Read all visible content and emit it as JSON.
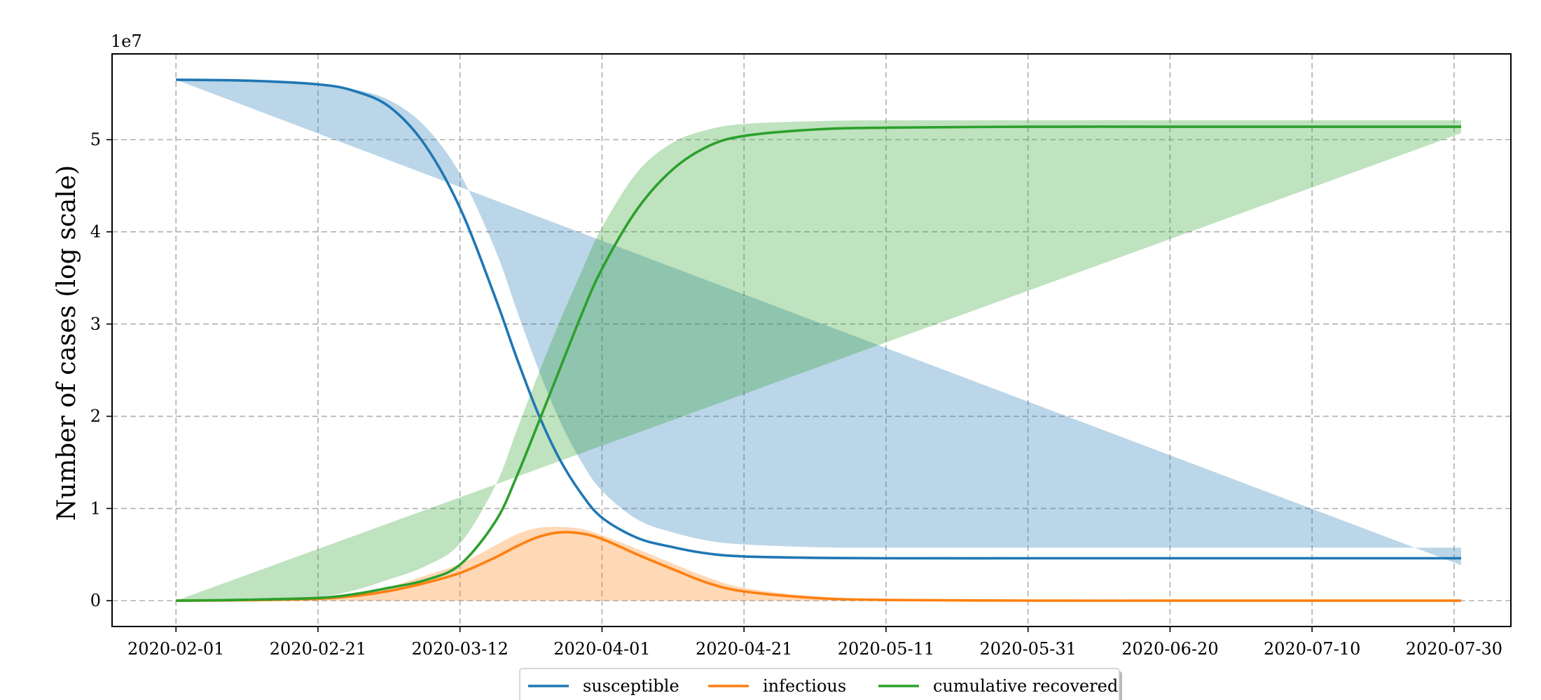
{
  "chart_data": {
    "type": "line",
    "ylabel": "Number of cases (log scale)",
    "y_offset_text": "1e7",
    "x_tick_labels": [
      "2020-02-01",
      "2020-02-21",
      "2020-03-12",
      "2020-04-01",
      "2020-04-21",
      "2020-05-11",
      "2020-05-31",
      "2020-06-20",
      "2020-07-10",
      "2020-07-30"
    ],
    "y_tick_labels": [
      "0",
      "1",
      "2",
      "3",
      "4",
      "5"
    ],
    "y_ticks": [
      0,
      10000000,
      20000000,
      30000000,
      40000000,
      50000000
    ],
    "x_range": [
      "2020-01-23",
      "2020-08-07"
    ],
    "y_range": [
      -2800000,
      59300000
    ],
    "grid": true,
    "legend_position": "bottom-center",
    "x": [
      "2020-02-01",
      "2020-02-11",
      "2020-02-21",
      "2020-02-26",
      "2020-03-02",
      "2020-03-07",
      "2020-03-12",
      "2020-03-17",
      "2020-03-20",
      "2020-03-23",
      "2020-03-26",
      "2020-03-29",
      "2020-04-01",
      "2020-04-06",
      "2020-04-11",
      "2020-04-16",
      "2020-04-21",
      "2020-05-01",
      "2020-05-11",
      "2020-05-31",
      "2020-06-20",
      "2020-07-10",
      "2020-07-31"
    ],
    "series": [
      {
        "name": "susceptible",
        "color": "#1f77b4",
        "values": [
          56500000,
          56400000,
          56000000,
          55300000,
          53600000,
          49500000,
          42600000,
          32800000,
          26300000,
          20300000,
          15400000,
          11700000,
          9000000,
          6800000,
          5800000,
          5100000,
          4800000,
          4650000,
          4600000,
          4600000,
          4600000,
          4600000,
          4600000
        ],
        "lower": [
          56500000,
          56400000,
          55900000,
          55100000,
          53000000,
          47500000,
          38700000,
          27500000,
          21300000,
          15900000,
          11800000,
          8800000,
          6700000,
          5200000,
          4500000,
          4150000,
          4000000,
          3900000,
          3850000,
          3850000,
          3850000,
          3850000,
          3850000
        ],
        "upper": [
          56500000,
          56400000,
          56100000,
          55500000,
          54300000,
          51500000,
          46300000,
          38000000,
          31500000,
          25200000,
          19600000,
          15200000,
          11900000,
          8800000,
          7400000,
          6500000,
          6100000,
          5800000,
          5750000,
          5750000,
          5750000,
          5750000,
          5750000
        ]
      },
      {
        "name": "infectious",
        "color": "#ff7f0e",
        "values": [
          0,
          50000,
          200000,
          500000,
          1050000,
          1900000,
          3000000,
          4700000,
          5900000,
          6900000,
          7400000,
          7300000,
          6700000,
          5000000,
          3400000,
          1900000,
          1000000,
          300000,
          80000,
          10000,
          0,
          0,
          0
        ],
        "lower": [
          0,
          30000,
          120000,
          300000,
          650000,
          1200000,
          2000000,
          3300000,
          4400000,
          5500000,
          6300000,
          6700000,
          6300000,
          4600000,
          2900000,
          1500000,
          700000,
          180000,
          40000,
          5000,
          0,
          0,
          0
        ],
        "upper": [
          0,
          70000,
          280000,
          750000,
          1500000,
          2700000,
          4000000,
          6000000,
          7200000,
          7900000,
          8000000,
          7800000,
          7100000,
          5600000,
          4000000,
          2500000,
          1400000,
          450000,
          120000,
          20000,
          0,
          0,
          0
        ]
      },
      {
        "name": "cumulative recovered",
        "color": "#2ca02c",
        "values": [
          0,
          100000,
          300000,
          700000,
          1400000,
          2200000,
          3900000,
          8600000,
          13500000,
          19200000,
          25000000,
          30800000,
          36000000,
          42500000,
          46800000,
          49300000,
          50400000,
          51100000,
          51300000,
          51400000,
          51400000,
          51400000,
          51400000
        ],
        "lower": [
          0,
          60000,
          200000,
          400000,
          700000,
          1200000,
          2400000,
          5400000,
          9300000,
          14000000,
          19500000,
          25200000,
          30500000,
          37500000,
          43000000,
          46600000,
          48600000,
          50200000,
          50600000,
          50700000,
          50700000,
          50700000,
          50700000
        ],
        "upper": [
          0,
          140000,
          450000,
          1100000,
          2300000,
          3700000,
          6200000,
          12500000,
          18500000,
          24500000,
          30200000,
          35500000,
          40500000,
          46500000,
          49700000,
          51100000,
          51700000,
          52000000,
          52100000,
          52100000,
          52100000,
          52100000,
          52100000
        ]
      }
    ]
  }
}
